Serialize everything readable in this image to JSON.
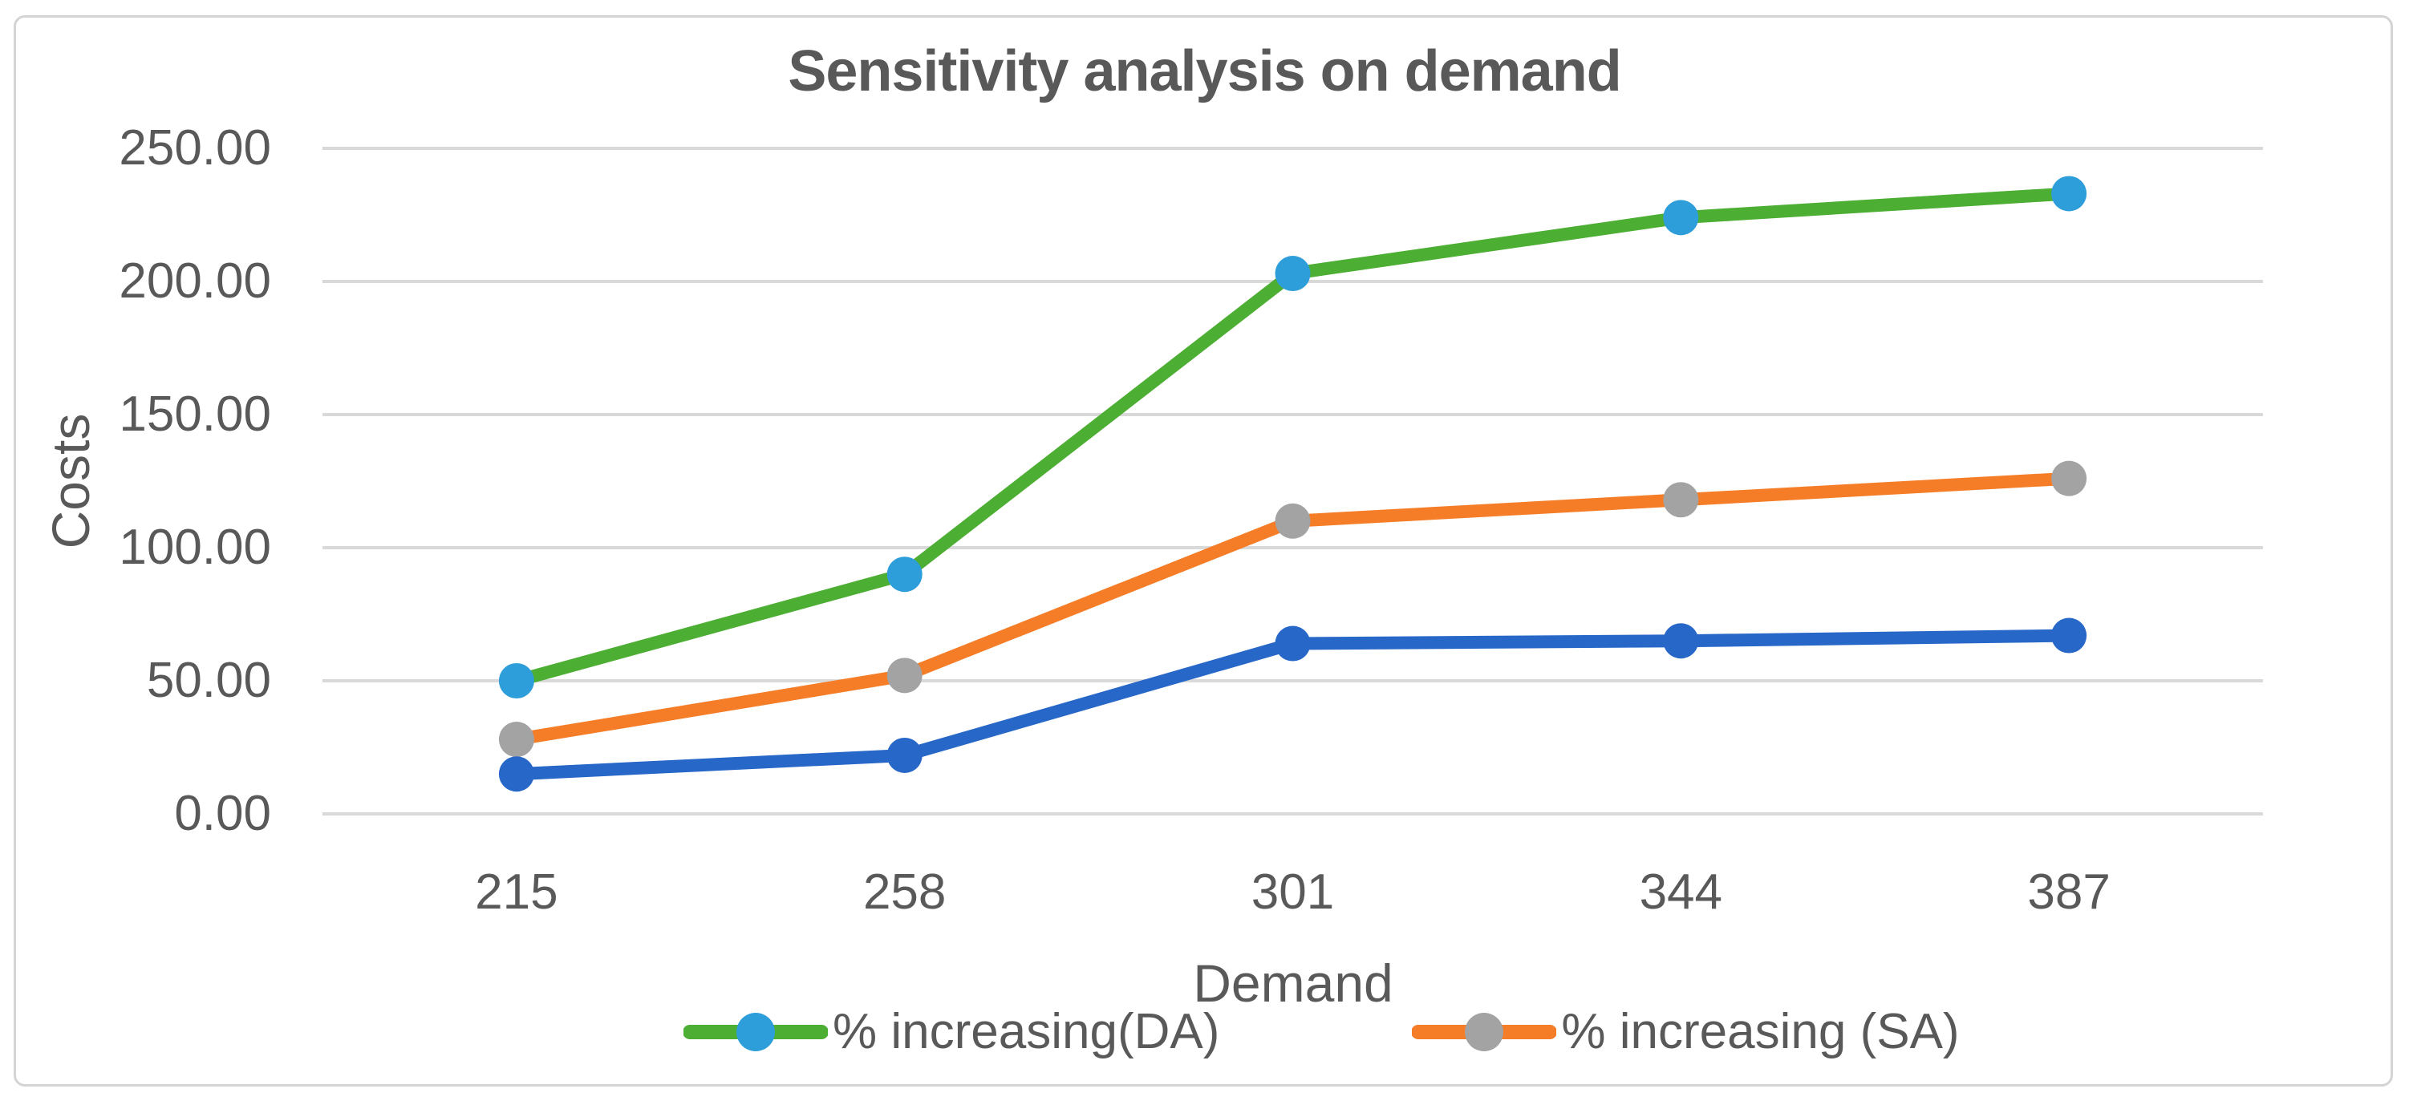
{
  "chart_data": {
    "type": "line",
    "title": "Sensitivity analysis on demand",
    "xlabel": "Demand",
    "ylabel": "Costs",
    "categories": [
      "215",
      "258",
      "301",
      "344",
      "387"
    ],
    "y_ticks": [
      {
        "value": 0,
        "label": "0.00"
      },
      {
        "value": 50,
        "label": "50.00"
      },
      {
        "value": 100,
        "label": "100.00"
      },
      {
        "value": 150,
        "label": "150.00"
      },
      {
        "value": 200,
        "label": "200.00"
      },
      {
        "value": 250,
        "label": "250.00"
      }
    ],
    "ylim": [
      0,
      250
    ],
    "grid": true,
    "legend_position": "bottom",
    "series": [
      {
        "name": "% increasing(DA)",
        "values": [
          50,
          90,
          203,
          224,
          233
        ],
        "line_color": "#4cae32",
        "marker_color": "#2e9eda",
        "show_in_legend": true
      },
      {
        "name": "% increasing (SA)",
        "values": [
          28,
          52,
          110,
          118,
          126
        ],
        "line_color": "#f57d28",
        "marker_color": "#a3a3a3",
        "show_in_legend": true
      },
      {
        "name": "",
        "values": [
          15,
          22,
          64,
          65,
          67
        ],
        "line_color": "#2767c8",
        "marker_color": "#2767c8",
        "show_in_legend": false
      }
    ]
  },
  "colors": {
    "text": "#595959",
    "gridline": "#d9d9d9",
    "frame_border": "#d4d4d4",
    "background": "#ffffff"
  }
}
